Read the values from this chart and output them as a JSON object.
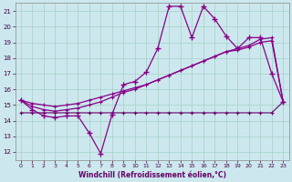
{
  "xlabel": "Windchill (Refroidissement éolien,°C)",
  "background_color": "#cce8ee",
  "grid_color": "#aad4cc",
  "line_color_main": "#880088",
  "line_color_diag": "#990099",
  "line_color_flat": "#660066",
  "xlim": [
    -0.5,
    23.5
  ],
  "ylim": [
    11.5,
    21.5
  ],
  "yticks": [
    12,
    13,
    14,
    15,
    16,
    17,
    18,
    19,
    20,
    21
  ],
  "xticks": [
    0,
    1,
    2,
    3,
    4,
    5,
    6,
    7,
    8,
    9,
    10,
    11,
    12,
    13,
    14,
    15,
    16,
    17,
    18,
    19,
    20,
    21,
    22,
    23
  ],
  "series_zigzag": [
    15.3,
    14.7,
    14.3,
    14.2,
    14.3,
    14.3,
    13.2,
    11.9,
    14.4,
    16.3,
    16.5,
    17.1,
    18.6,
    21.3,
    21.3,
    19.3,
    21.3,
    20.5,
    19.4,
    18.6,
    19.3,
    19.3,
    17.0,
    15.2
  ],
  "series_flat": [
    14.5,
    14.5,
    14.5,
    14.5,
    14.5,
    14.5,
    14.5,
    14.5,
    14.5,
    14.5,
    14.5,
    14.5,
    14.5,
    14.5,
    14.5,
    14.5,
    14.5,
    14.5,
    14.5,
    14.5,
    14.5,
    14.5,
    14.5,
    15.2
  ],
  "series_diag1": [
    15.3,
    15.1,
    15.0,
    14.9,
    15.0,
    15.1,
    15.3,
    15.5,
    15.7,
    15.9,
    16.1,
    16.3,
    16.6,
    16.9,
    17.2,
    17.5,
    17.8,
    18.1,
    18.4,
    18.6,
    18.8,
    19.2,
    19.3,
    15.2
  ],
  "series_diag2": [
    15.3,
    14.9,
    14.7,
    14.6,
    14.7,
    14.8,
    15.0,
    15.2,
    15.5,
    15.8,
    16.0,
    16.3,
    16.6,
    16.9,
    17.2,
    17.5,
    17.8,
    18.1,
    18.4,
    18.5,
    18.7,
    19.0,
    19.1,
    15.2
  ]
}
